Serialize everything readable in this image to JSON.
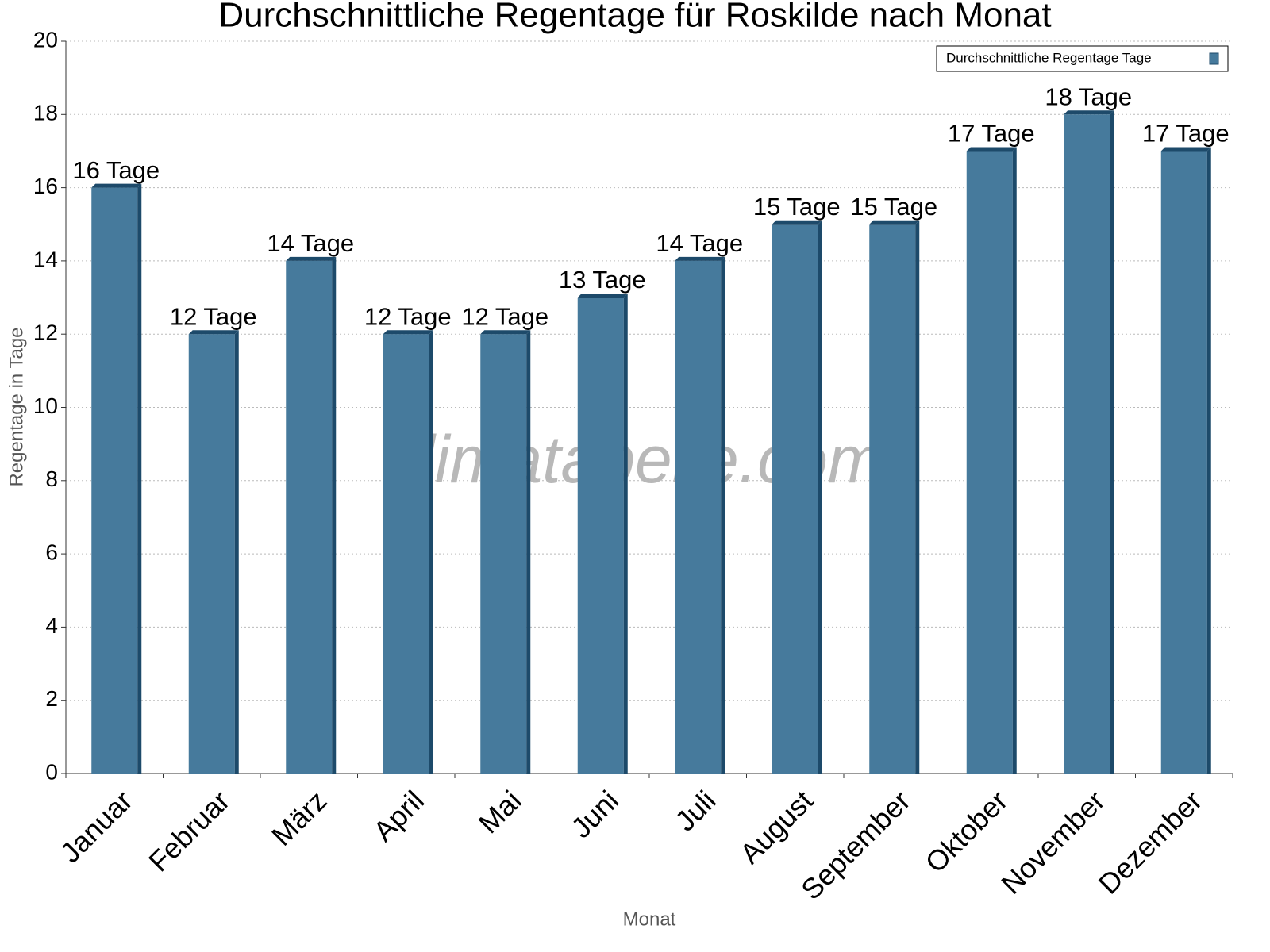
{
  "chart_data": {
    "type": "bar",
    "title": "Durchschnittliche Regentage für Roskilde nach Monat",
    "x_label": "Monat",
    "y_label": "Regentage in Tage",
    "watermark": "klimatabelle.com",
    "categories": [
      "Januar",
      "Februar",
      "März",
      "April",
      "Mai",
      "Juni",
      "Juli",
      "August",
      "September",
      "Oktober",
      "November",
      "Dezember"
    ],
    "series": [
      {
        "name": "Durchschnittliche Regentage Tage",
        "color": "#467a9c",
        "values": [
          16,
          12,
          14,
          12,
          12,
          13,
          14,
          15,
          15,
          17,
          18,
          17
        ],
        "value_labels": [
          "16 Tage",
          "12 Tage",
          "14 Tage",
          "12 Tage",
          "12 Tage",
          "13 Tage",
          "14 Tage",
          "15 Tage",
          "15 Tage",
          "17 Tage",
          "18 Tage",
          "17 Tage"
        ]
      }
    ],
    "ylim": [
      0,
      20
    ],
    "yticks": [
      0,
      2,
      4,
      6,
      8,
      10,
      12,
      14,
      16,
      18,
      20
    ],
    "grid": true,
    "legend": "top-right"
  }
}
